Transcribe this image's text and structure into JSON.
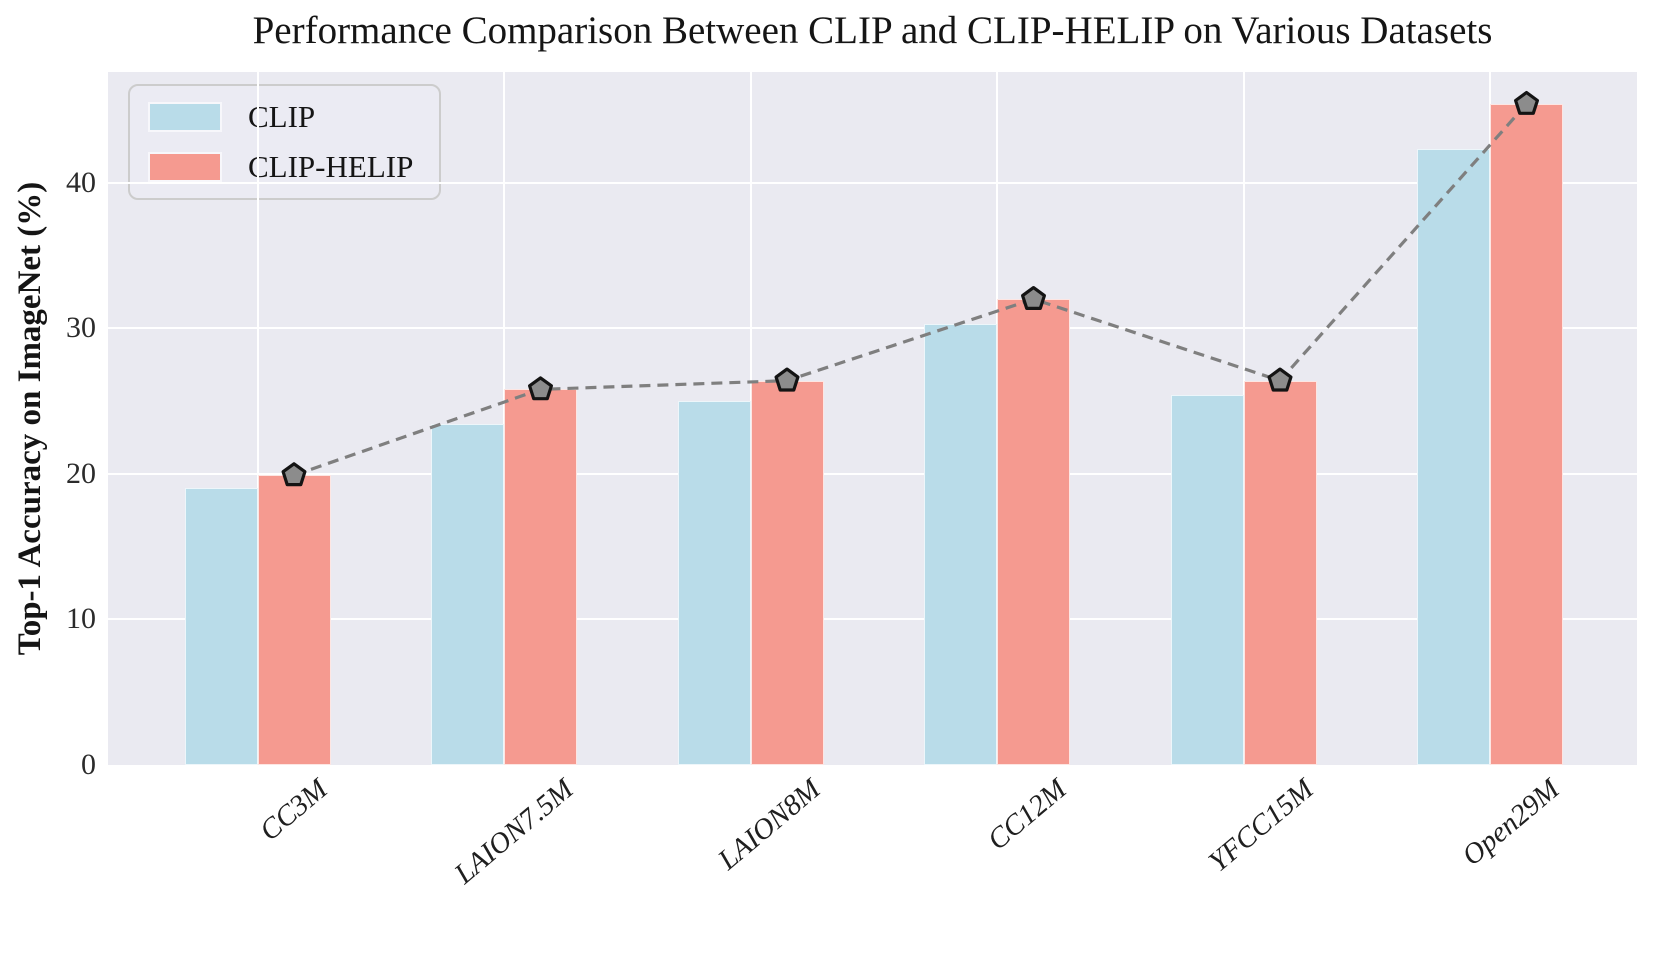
{
  "title": "Performance Comparison Between CLIP and CLIP-HELIP on Various Datasets",
  "y_axis_title": "Top-1 Accuracy on ImageNet (%)",
  "legend": {
    "items": [
      "CLIP",
      "CLIP-HELIP"
    ]
  },
  "chart_data": {
    "type": "bar",
    "title": "Performance Comparison Between CLIP and CLIP-HELIP on Various Datasets",
    "xlabel": "",
    "ylabel": "Top-1 Accuracy on ImageNet (%)",
    "categories": [
      "CC3M",
      "LAION7.5M",
      "LAION8M",
      "CC12M",
      "YFCC15M",
      "Open29M"
    ],
    "series": [
      {
        "name": "CLIP",
        "color": "#b9dce9",
        "values": [
          19.0,
          23.4,
          25.0,
          30.3,
          25.4,
          42.3
        ]
      },
      {
        "name": "CLIP-HELIP",
        "color": "#f59a90",
        "values": [
          19.9,
          25.8,
          26.4,
          32.0,
          26.4,
          45.4
        ]
      }
    ],
    "overlay_line": {
      "follows_series": "CLIP-HELIP",
      "style": "dashed",
      "color": "#7f7f7f",
      "marker": "pentagon",
      "marker_fill": "#8c8c8c",
      "marker_edge": "#141414"
    },
    "yticks": [
      0,
      10,
      20,
      30,
      40
    ],
    "ylim": [
      0,
      47.6
    ],
    "grid": true,
    "grid_color": "#ffffff",
    "plot_bg": "#eaeaf1",
    "legend_position": "upper left"
  }
}
